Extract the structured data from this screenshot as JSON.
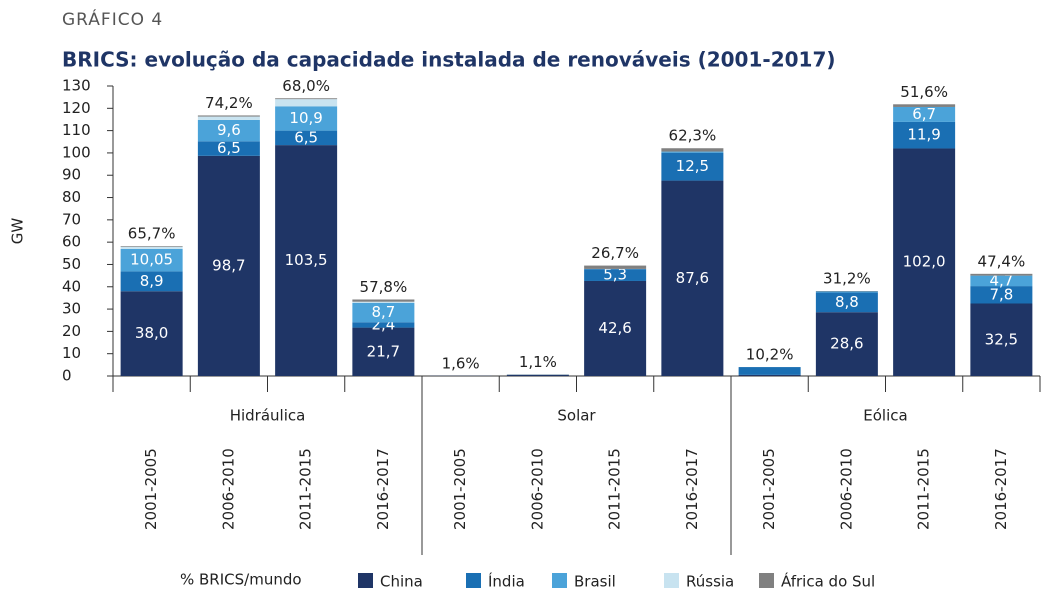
{
  "chart_data": {
    "type": "stacked_bar",
    "kicker": "GRÁFICO 4",
    "title": "BRICS: evolução da capacidade instalada de renováveis (2001-2017)",
    "ylabel": "GW",
    "groups": [
      "Hidráulica",
      "Solar",
      "Eólica"
    ],
    "categories": [
      "2001-2005",
      "2006-2010",
      "2011-2015",
      "2016-2017",
      "2001-2005",
      "2006-2010",
      "2011-2015",
      "2016-2017",
      "2001-2005",
      "2006-2010",
      "2011-2015",
      "2016-2017"
    ],
    "ylim": [
      0,
      130
    ],
    "yticks": [
      0,
      10,
      20,
      30,
      40,
      50,
      60,
      70,
      80,
      90,
      100,
      110,
      120,
      130
    ],
    "series": [
      {
        "name": "China",
        "color": "#1f3566",
        "values": [
          38.0,
          98.7,
          103.5,
          21.7,
          0.1,
          0.5,
          42.6,
          87.6,
          0.5,
          28.6,
          102.0,
          32.5
        ],
        "value_labels": [
          "38,0",
          "98,7",
          "103,5",
          "21,7",
          null,
          null,
          "42,6",
          "87,6",
          null,
          "28,6",
          "102,0",
          "32,5"
        ]
      },
      {
        "name": "Índia",
        "color": "#1a6fb3",
        "values": [
          8.9,
          6.5,
          6.5,
          2.4,
          0,
          0.1,
          5.3,
          12.5,
          3.5,
          8.8,
          11.9,
          7.8
        ],
        "value_labels": [
          "8,9",
          "6,5",
          "6,5",
          "2,4",
          null,
          null,
          "5,3",
          "12,5",
          null,
          "8,8",
          "11,9",
          "7,8"
        ]
      },
      {
        "name": "Brasil",
        "color": "#4ba3d9",
        "values": [
          10.05,
          9.6,
          10.9,
          8.7,
          0,
          0,
          0.1,
          0.5,
          0,
          0.5,
          6.7,
          4.7
        ],
        "value_labels": [
          "10,05",
          "9,6",
          "10,9",
          "8,7",
          null,
          null,
          null,
          null,
          null,
          null,
          "6,7",
          "4,7"
        ]
      },
      {
        "name": "Rússia",
        "color": "#c8e3f0",
        "values": [
          1.0,
          1.5,
          3.2,
          0.5,
          0,
          0,
          0,
          0,
          0,
          0,
          0,
          0
        ]
      },
      {
        "name": "África do Sul",
        "color": "#808080",
        "values": [
          0.3,
          0.5,
          0.4,
          1.0,
          0,
          0.1,
          1.5,
          1.5,
          0,
          0.2,
          1.2,
          0.8
        ]
      }
    ],
    "shares": {
      "name": "% BRICS/mundo",
      "values": [
        65.7,
        74.2,
        68.0,
        57.8,
        1.6,
        1.1,
        26.7,
        62.3,
        10.2,
        31.2,
        51.6,
        47.4
      ],
      "value_labels": [
        "65,7%",
        "74,2%",
        "68,0%",
        "57,8%",
        "1,6%",
        "1,1%",
        "26,7%",
        "62,3%",
        "10,2%",
        "31,2%",
        "51,6%",
        "47,4%"
      ]
    }
  }
}
